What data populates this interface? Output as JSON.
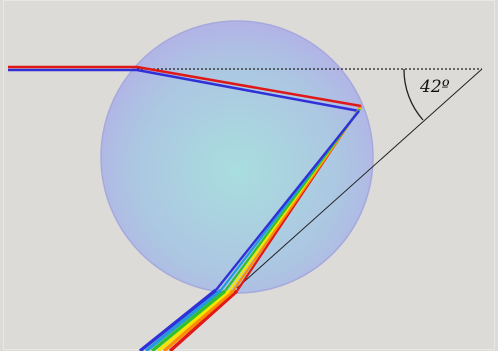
{
  "diagram": {
    "angle_label": "42º",
    "colors": {
      "background": "#dcdbd8",
      "droplet_center": "#a9dede",
      "droplet_edge": "#b0b4e4",
      "droplet_rim": "#a6a9dc",
      "guide_lines": "#222222",
      "spectrum": [
        "#e01818",
        "#ff8c00",
        "#f2e600",
        "#2fbf2f",
        "#2299dd",
        "#3030d8",
        "#7a1fd0"
      ]
    }
  }
}
